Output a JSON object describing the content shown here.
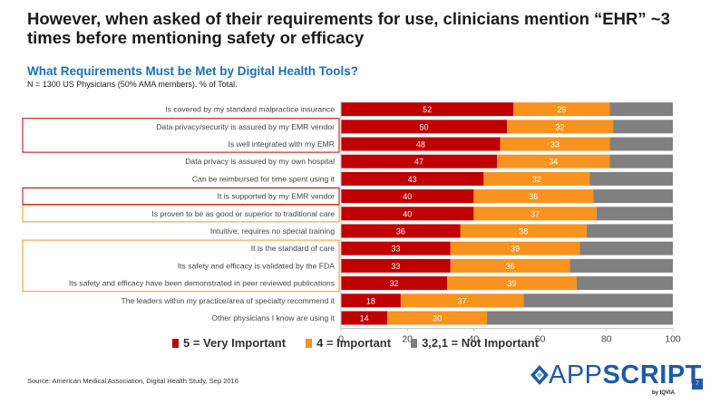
{
  "headline": "However, when asked of their requirements for use, clinicians mention “EHR” ~3 times before mentioning safety or efficacy",
  "subtitle": "What Requirements Must be Met by Digital Health Tools?",
  "sample_note": "N = 1300 US Physicians  (50% AMA members). % of Total.",
  "source": "Source: American Medical Association, Digital Health Study, Sep 2016",
  "brand": {
    "word_a": "APP",
    "word_b": "SCRIPT",
    "sub": "by IQVIA",
    "mark": "diamond-logo-icon"
  },
  "page_number": "7",
  "colors": {
    "very_important": "#c00000",
    "important": "#f7931e",
    "not_important": "#808080",
    "highlight_red": "#c00000",
    "highlight_orange": "#f7931e",
    "brand_blue": "#1e5aa8",
    "subtitle_blue": "#1a6fbf"
  },
  "legend": [
    {
      "label": "5 = Very Important",
      "color": "#c00000"
    },
    {
      "label": "4 = Important",
      "color": "#f7931e"
    },
    {
      "label": "3,2,1 = Not Important",
      "color": "#808080"
    }
  ],
  "chart_data": {
    "type": "bar",
    "orientation": "horizontal",
    "stacked": true,
    "categories": [
      "Is covered by my standard malpractice insurance",
      "Data privacy/security is assured by my EMR vendor",
      "Is well integrated with my EMR",
      "Data privacy is assured by my own hospital",
      "Can be reimbursed for time spent using it",
      "It is supported by my EMR vendor",
      "Is proven to be as good or superior to traditional care",
      "Intuitive; requires no special training",
      "It is the standard of care",
      "Its safety and efficacy is validated by the FDA",
      "Its safety and efficacy have been demonstrated in peer reviewed publications",
      "The leaders within my practice/area of specialty recommend it",
      "Other physicians I know are using it"
    ],
    "series": [
      {
        "name": "5 = Very Important",
        "values": [
          52,
          50,
          48,
          47,
          43,
          40,
          40,
          36,
          33,
          33,
          32,
          18,
          14
        ]
      },
      {
        "name": "4 = Important",
        "values": [
          29,
          32,
          33,
          34,
          32,
          36,
          37,
          38,
          39,
          36,
          39,
          37,
          30
        ]
      },
      {
        "name": "3,2,1 = Not Important",
        "values": [
          19,
          18,
          19,
          19,
          25,
          24,
          23,
          26,
          28,
          31,
          29,
          45,
          56
        ]
      }
    ],
    "xlim": [
      0,
      100
    ],
    "xticks": [
      "0",
      "20",
      "40",
      "60",
      "80",
      "100"
    ],
    "legend_position": "bottom",
    "grid": false,
    "highlight_groups": [
      {
        "rows": [
          1,
          2
        ],
        "color": "#c00000"
      },
      {
        "rows": [
          5
        ],
        "color": "#c00000"
      },
      {
        "rows": [
          6
        ],
        "color": "#f7931e"
      },
      {
        "rows": [
          8,
          9,
          10
        ],
        "color": "#f7931e"
      }
    ]
  }
}
